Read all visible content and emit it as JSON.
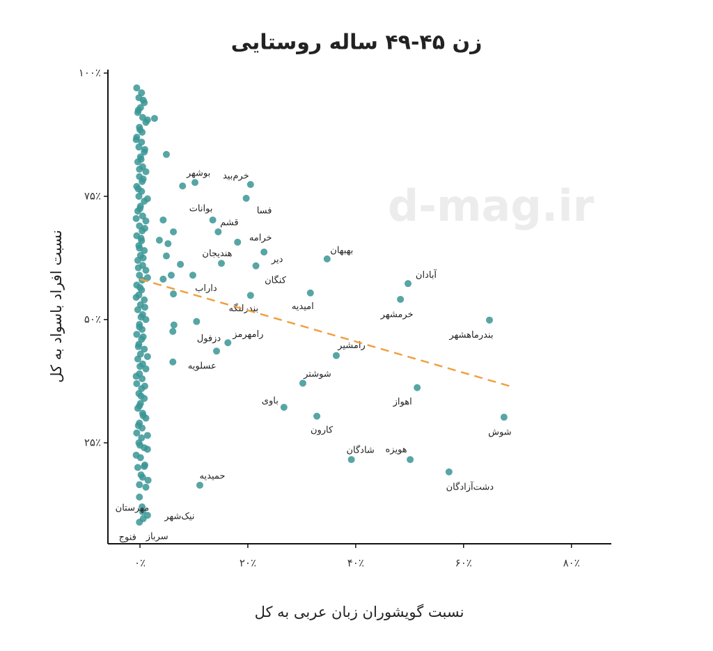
{
  "chart_data": {
    "type": "scatter",
    "title": "زن ۴۵-۴۹ ساله روستایی",
    "x_label": "نسبت گویشوران زبان عربی به کل",
    "y_label": "نسبت افراد باسواد به کل",
    "watermark": "d-mag.ir",
    "xlim": [
      -5.94,
      87.4
    ],
    "ylim": [
      4.52,
      100.7
    ],
    "xticks": [
      {
        "value": 0,
        "label": "۰٪"
      },
      {
        "value": 20,
        "label": "۲۰٪"
      },
      {
        "value": 40,
        "label": "۴۰٪"
      },
      {
        "value": 60,
        "label": "۶۰٪"
      },
      {
        "value": 80,
        "label": "۸۰٪"
      }
    ],
    "yticks": [
      {
        "value": 25,
        "label": "۲۵٪"
      },
      {
        "value": 50,
        "label": "۵۰٪"
      },
      {
        "value": 75,
        "label": "۷۵٪"
      },
      {
        "value": 100,
        "label": "۱۰۰٪"
      }
    ],
    "grid": false,
    "series": [
      {
        "color": "#3a9595",
        "x": [
          -0.6,
          0.3,
          -0.2,
          0.8,
          0.1,
          -0.4,
          0.5,
          1.1,
          -0.1,
          0.4,
          -0.6,
          0.3,
          -0.2,
          0.8,
          0.1,
          -0.4,
          0.5,
          1.1,
          -0.1,
          0.4,
          -0.6,
          0.3,
          -0.2,
          0.8,
          0.1,
          -0.4,
          0.5,
          1.1,
          -0.1,
          0.4,
          -0.6,
          0.3,
          -0.2,
          0.8,
          0.1,
          -0.4,
          0.5,
          1.1,
          -0.1,
          0.4,
          -0.6,
          0.3,
          -0.2,
          0.8,
          0.1,
          -0.4,
          0.5,
          1.1,
          -0.1,
          0.4,
          -0.6,
          0.3,
          -0.2,
          0.8,
          0.1,
          -0.4,
          0.5,
          1.1,
          -0.1,
          0.4,
          -0.6,
          0.3,
          -0.2,
          0.8,
          0.1,
          -0.4,
          0.5,
          1.1,
          -0.1,
          0.4,
          -0.6,
          0.3,
          -0.2,
          0.8,
          0.1,
          -0.4,
          0.5,
          1.1,
          -0.1,
          0.4,
          0.6,
          -0.3,
          1.4,
          0.0,
          -0.7,
          0.9,
          0.2,
          -0.1,
          0.6,
          -0.3,
          1.4,
          0.0,
          -0.7,
          0.9,
          0.2,
          -0.1,
          0.6,
          -0.3,
          1.4,
          0.0,
          -0.7,
          0.9,
          0.2,
          -0.1,
          0.6,
          -0.3,
          1.4,
          0.0,
          -0.7,
          0.9,
          0.2,
          -0.1,
          0.6,
          -0.3,
          1.4,
          0.0,
          -0.7,
          0.9,
          0.2,
          -0.1,
          4.9,
          2.7,
          7.9,
          4.3,
          3.6,
          5.2,
          6.2,
          4.9,
          4.3,
          5.8,
          7.5,
          6.2,
          6.3,
          6.1,
          10.5,
          1.4,
          0.8,
          1.5
        ],
        "y": [
          97,
          96,
          95,
          94,
          93,
          92,
          91,
          90,
          89,
          88,
          87,
          86,
          85,
          84,
          83,
          82,
          81,
          80,
          79,
          78,
          77,
          76,
          75,
          74,
          73,
          72,
          71,
          70,
          69,
          68,
          67,
          66,
          65,
          64,
          63,
          62,
          61,
          60,
          59,
          58,
          57,
          56,
          55,
          54,
          53,
          52,
          51,
          50,
          49,
          48,
          47,
          46,
          45,
          44,
          43,
          42,
          41,
          40,
          39,
          38,
          37,
          36,
          35,
          34,
          33,
          32,
          31,
          30,
          29,
          28,
          27,
          26,
          25,
          24,
          22,
          20,
          18,
          16,
          14,
          12,
          94.5,
          92.5,
          90.5,
          88.5,
          86.5,
          84.5,
          82.5,
          80.5,
          78.5,
          76.5,
          74.5,
          72.5,
          70.5,
          68.5,
          66.5,
          64.5,
          62.5,
          60.5,
          58.5,
          56.5,
          54.5,
          52.5,
          50.5,
          48.5,
          46.5,
          44.5,
          42.5,
          40.5,
          38.5,
          36.5,
          34.5,
          32.5,
          30.5,
          28.5,
          26.5,
          24.5,
          22.5,
          20.5,
          18.5,
          16.5,
          83.5,
          90.8,
          77.1,
          70.2,
          66.1,
          65.4,
          67.8,
          62.9,
          58.2,
          59.0,
          61.2,
          55.2,
          48.9,
          47.6,
          49.6,
          23.7,
          20.2,
          17.4
        ]
      },
      {
        "color": "#3a9595",
        "labels": [
          "بوشهر",
          "خرم‌بید",
          "فسا",
          "بوانات",
          "قشم",
          "خرامه",
          "هندیجان",
          "دیر",
          "کنگان",
          "بهبهان",
          "آبادان",
          "داراب",
          "بندرلنگه",
          "امیدیه",
          "خرمشهر",
          "بندرماهشهر",
          "رامهرمز",
          "دزفول",
          "عسلویه",
          "رامشیر",
          "شوشتر",
          "اهواز",
          "باوی",
          "کارون",
          "شوش",
          "شادگان",
          "هویزه",
          "دشت‌آزادگان",
          "حمیدیه",
          "مهرستان",
          "نیک‌شهر",
          "سرباز",
          "فنوج"
        ],
        "x": [
          10.2,
          20.5,
          19.7,
          13.5,
          14.5,
          18.1,
          15.1,
          23.0,
          21.5,
          34.7,
          49.7,
          9.8,
          20.5,
          31.6,
          48.3,
          64.8,
          16.3,
          14.2,
          6.1,
          36.4,
          30.2,
          51.4,
          26.7,
          32.8,
          67.5,
          39.2,
          50.1,
          57.3,
          11.1,
          0.5,
          1.4,
          0.6,
          -0.1
        ],
        "y": [
          77.8,
          77.4,
          74.6,
          70.2,
          67.8,
          65.7,
          61.4,
          63.7,
          60.9,
          62.3,
          57.3,
          59.0,
          54.9,
          55.4,
          54.1,
          49.9,
          45.3,
          43.6,
          41.4,
          42.7,
          37.1,
          36.2,
          32.2,
          30.4,
          30.2,
          21.6,
          21.6,
          19.1,
          16.4,
          11.0,
          10.3,
          9.6,
          8.9
        ]
      }
    ],
    "trend": {
      "color": "#f0a040",
      "x": [
        0,
        68.9
      ],
      "y": [
        58.2,
        36.4
      ]
    }
  }
}
